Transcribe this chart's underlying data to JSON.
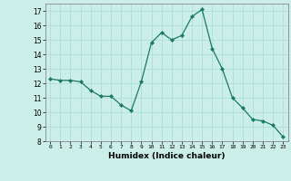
{
  "x": [
    0,
    1,
    2,
    3,
    4,
    5,
    6,
    7,
    8,
    9,
    10,
    11,
    12,
    13,
    14,
    15,
    16,
    17,
    18,
    19,
    20,
    21,
    22,
    23
  ],
  "y": [
    12.3,
    12.2,
    12.2,
    12.1,
    11.5,
    11.1,
    11.1,
    10.5,
    10.1,
    12.1,
    14.8,
    15.5,
    15.0,
    15.3,
    16.6,
    17.1,
    14.4,
    13.0,
    11.0,
    10.3,
    9.5,
    9.4,
    9.1,
    8.3
  ],
  "xlabel": "Humidex (Indice chaleur)",
  "line_color": "#1a7a62",
  "marker": "D",
  "marker_size": 2.0,
  "bg_color": "#cceee8",
  "grid_color": "#aadddd",
  "ylim": [
    8,
    17.5
  ],
  "xlim": [
    -0.5,
    23.5
  ],
  "yticks": [
    8,
    9,
    10,
    11,
    12,
    13,
    14,
    15,
    16,
    17
  ],
  "xticks": [
    0,
    1,
    2,
    3,
    4,
    5,
    6,
    7,
    8,
    9,
    10,
    11,
    12,
    13,
    14,
    15,
    16,
    17,
    18,
    19,
    20,
    21,
    22,
    23
  ]
}
